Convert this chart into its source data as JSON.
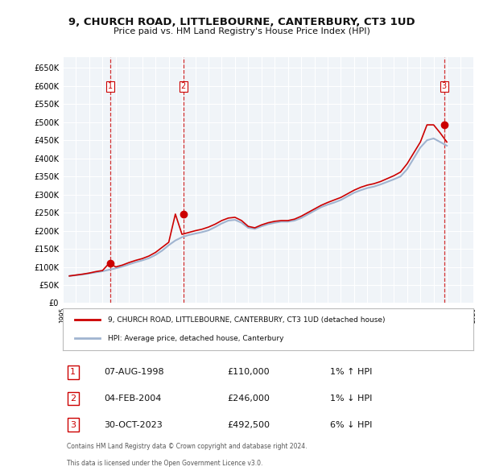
{
  "title": "9, CHURCH ROAD, LITTLEBOURNE, CANTERBURY, CT3 1UD",
  "subtitle": "Price paid vs. HM Land Registry's House Price Index (HPI)",
  "legend_line1": "9, CHURCH ROAD, LITTLEBOURNE, CANTERBURY, CT3 1UD (detached house)",
  "legend_line2": "HPI: Average price, detached house, Canterbury",
  "footer_line1": "Contains HM Land Registry data © Crown copyright and database right 2024.",
  "footer_line2": "This data is licensed under the Open Government Licence v3.0.",
  "transactions": [
    {
      "num": 1,
      "date": "07-AUG-1998",
      "price": "£110,000",
      "hpi": "1% ↑ HPI"
    },
    {
      "num": 2,
      "date": "04-FEB-2004",
      "price": "£246,000",
      "hpi": "1% ↓ HPI"
    },
    {
      "num": 3,
      "date": "30-OCT-2023",
      "price": "£492,500",
      "hpi": "6% ↓ HPI"
    }
  ],
  "hpi_color": "#a0b4d0",
  "price_color": "#cc0000",
  "dashed_color": "#cc0000",
  "background_color": "#ffffff",
  "plot_bg_color": "#f0f4f8",
  "grid_color": "#ffffff",
  "ylim": [
    0,
    680000
  ],
  "yticks": [
    0,
    50000,
    100000,
    150000,
    200000,
    250000,
    300000,
    350000,
    400000,
    450000,
    500000,
    550000,
    600000,
    650000
  ],
  "hpi_data": {
    "years": [
      1995.5,
      1996,
      1996.5,
      1997,
      1997.5,
      1998,
      1998.5,
      1999,
      1999.5,
      2000,
      2000.5,
      2001,
      2001.5,
      2002,
      2002.5,
      2003,
      2003.5,
      2004,
      2004.5,
      2005,
      2005.5,
      2006,
      2006.5,
      2007,
      2007.5,
      2008,
      2008.5,
      2009,
      2009.5,
      2010,
      2010.5,
      2011,
      2011.5,
      2012,
      2012.5,
      2013,
      2013.5,
      2014,
      2014.5,
      2015,
      2015.5,
      2016,
      2016.5,
      2017,
      2017.5,
      2018,
      2018.5,
      2019,
      2019.5,
      2020,
      2020.5,
      2021,
      2021.5,
      2022,
      2022.5,
      2023,
      2023.5,
      2024
    ],
    "values": [
      75000,
      77000,
      79000,
      82000,
      85000,
      88000,
      92000,
      96000,
      101000,
      107000,
      113000,
      118000,
      124000,
      133000,
      145000,
      160000,
      173000,
      182000,
      188000,
      192000,
      196000,
      201000,
      210000,
      220000,
      228000,
      230000,
      222000,
      208000,
      205000,
      212000,
      218000,
      222000,
      225000,
      225000,
      228000,
      235000,
      245000,
      255000,
      265000,
      272000,
      278000,
      285000,
      295000,
      305000,
      312000,
      318000,
      322000,
      328000,
      335000,
      342000,
      350000,
      370000,
      400000,
      430000,
      450000,
      455000,
      445000,
      435000
    ]
  },
  "price_data": {
    "years": [
      1995.5,
      1996,
      1996.5,
      1997,
      1997.5,
      1998,
      1998.5,
      1999,
      1999.5,
      2000,
      2000.5,
      2001,
      2001.5,
      2002,
      2002.5,
      2003,
      2003.5,
      2004,
      2004.5,
      2005,
      2005.5,
      2006,
      2006.5,
      2007,
      2007.5,
      2008,
      2008.5,
      2009,
      2009.5,
      2010,
      2010.5,
      2011,
      2011.5,
      2012,
      2012.5,
      2013,
      2013.5,
      2014,
      2014.5,
      2015,
      2015.5,
      2016,
      2016.5,
      2017,
      2017.5,
      2018,
      2018.5,
      2019,
      2019.5,
      2020,
      2020.5,
      2021,
      2021.5,
      2022,
      2022.5,
      2023,
      2023.5,
      2024
    ],
    "values": [
      75000,
      77500,
      80000,
      83000,
      87000,
      90000,
      110000,
      100000,
      105000,
      112000,
      118000,
      123000,
      130000,
      140000,
      154000,
      168000,
      246000,
      190000,
      195000,
      200000,
      204000,
      210000,
      218000,
      228000,
      235000,
      237000,
      228000,
      212000,
      208000,
      216000,
      222000,
      226000,
      228000,
      228000,
      232000,
      240000,
      250000,
      260000,
      270000,
      278000,
      285000,
      292000,
      302000,
      312000,
      320000,
      326000,
      330000,
      336000,
      344000,
      352000,
      362000,
      385000,
      415000,
      445000,
      492500,
      492500,
      470000,
      445000
    ]
  },
  "transaction_years": [
    1998.6,
    2004.1,
    2023.8
  ],
  "transaction_prices": [
    110000,
    246000,
    492500
  ],
  "transaction_labels": [
    "1",
    "2",
    "3"
  ],
  "xmin": 1995,
  "xmax": 2026
}
